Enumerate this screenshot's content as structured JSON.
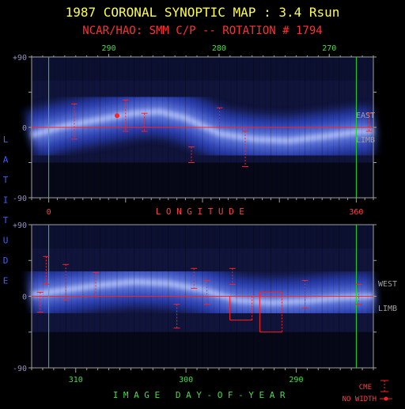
{
  "chart_data": [
    {
      "type": "heatmap",
      "title": "1987 CORONAL SYNOPTIC MAP : 3.4 Rsun",
      "subtitle": "NCAR/HAO: SMM C/P -- ROTATION # 1794",
      "panel": "east-limb",
      "side_label": [
        "EAST",
        "LIMB"
      ],
      "top_axis": {
        "ticks": [
          290,
          280,
          270
        ],
        "range": [
          297,
          266
        ]
      },
      "bottom_axis": {
        "label": "LONGITUDE",
        "ticks": [
          0,
          360
        ],
        "range": [
          -20,
          380
        ]
      },
      "y_axis": {
        "ticks": [
          "+90",
          "0",
          "-90"
        ],
        "range": [
          -90,
          90
        ]
      },
      "green_lines_longitude": [
        0,
        360
      ],
      "equator_latitude": 0,
      "streamer_belt": [
        [
          -20,
          -10
        ],
        [
          20,
          2
        ],
        [
          60,
          10
        ],
        [
          100,
          18
        ],
        [
          130,
          20
        ],
        [
          160,
          12
        ],
        [
          200,
          -8
        ],
        [
          240,
          -15
        ],
        [
          280,
          -17
        ],
        [
          320,
          -12
        ],
        [
          360,
          -6
        ],
        [
          380,
          -5
        ]
      ],
      "cme_markers": [
        {
          "lon": 30,
          "lat_top": 30,
          "lat_bottom": -15
        },
        {
          "lon": 90,
          "lat_top": 35,
          "lat_bottom": -5
        },
        {
          "lon": 112,
          "lat_top": 18,
          "lat_bottom": -5
        },
        {
          "lon": 167,
          "lat_top": -25,
          "lat_bottom": -45
        },
        {
          "lon": 200,
          "lat_top": 25,
          "lat_bottom": 0
        },
        {
          "lon": 230,
          "lat_top": -5,
          "lat_bottom": -50
        },
        {
          "lon": 375,
          "lat_top": 18,
          "lat_bottom": -5
        }
      ],
      "no_width_markers": [
        {
          "lon": 80,
          "lat": 15
        }
      ]
    },
    {
      "type": "heatmap",
      "panel": "west-limb",
      "side_label": [
        "WEST",
        "LIMB"
      ],
      "bottom_axis": {
        "label": "IMAGE DAY-OF-YEAR",
        "ticks": [
          310,
          300,
          290
        ],
        "range": [
          314,
          283
        ]
      },
      "y_axis": {
        "ticks": [
          "+90",
          "0",
          "-90"
        ],
        "range": [
          -90,
          90
        ]
      },
      "vertical_label": "LATITUDE",
      "green_lines_longitude": [
        0,
        360
      ],
      "equator_latitude": 0,
      "streamer_belt": [
        [
          -20,
          2
        ],
        [
          20,
          8
        ],
        [
          60,
          14
        ],
        [
          100,
          18
        ],
        [
          140,
          16
        ],
        [
          180,
          8
        ],
        [
          220,
          -5
        ],
        [
          260,
          -8
        ],
        [
          300,
          -6
        ],
        [
          340,
          -2
        ],
        [
          380,
          0
        ]
      ],
      "cme_markers": [
        {
          "lon": -10,
          "lat_top": 5,
          "lat_bottom": -20
        },
        {
          "lon": -3,
          "lat_top": 50,
          "lat_bottom": 15
        },
        {
          "lon": 20,
          "lat_top": 40,
          "lat_bottom": -5
        },
        {
          "lon": 55,
          "lat_top": 30,
          "lat_bottom": 0
        },
        {
          "lon": 150,
          "lat_top": -10,
          "lat_bottom": -40
        },
        {
          "lon": 170,
          "lat_top": 35,
          "lat_bottom": 10
        },
        {
          "lon": 185,
          "lat_top": 20,
          "lat_bottom": -10
        },
        {
          "lon": 215,
          "lat_top": 35,
          "lat_bottom": 15
        },
        {
          "lon": 225,
          "lat_top": 0,
          "lat_bottom": -30,
          "wide": true
        },
        {
          "lon": 260,
          "lat_top": 5,
          "lat_bottom": -45,
          "wide": true
        },
        {
          "lon": 300,
          "lat_top": 20,
          "lat_bottom": -15
        },
        {
          "lon": 363,
          "lat_top": 15,
          "lat_bottom": -10
        }
      ]
    }
  ],
  "legend": {
    "cme_label": "CME",
    "no_width_label": "NO WIDTH"
  },
  "colors": {
    "title": "#ffff40",
    "subtitle": "#ff3030",
    "equator": "#ff2020",
    "marker": "#ff2020",
    "green": "#20e020",
    "axis_label_red": "#ff4040",
    "axis_label_green": "#40e040",
    "latitude_label": "#4060ff",
    "tick_text": "#9090c0",
    "frame": "#a0a0a0"
  }
}
